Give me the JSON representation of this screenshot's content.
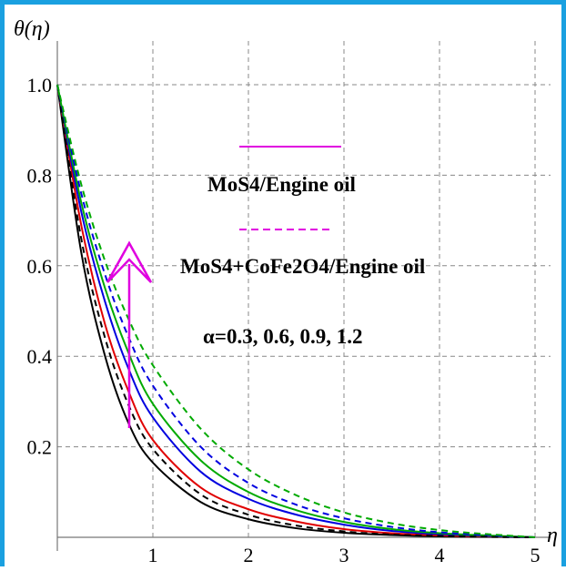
{
  "chart_data": {
    "type": "line",
    "ylabel": "θ(η)",
    "xlabel": "η",
    "xlim": [
      0,
      5
    ],
    "ylim": [
      0,
      1.0
    ],
    "x_ticks": [
      "1",
      "2",
      "3",
      "4",
      "5"
    ],
    "y_ticks": [
      "0.2",
      "0.4",
      "0.6",
      "0.8",
      "1.0"
    ],
    "grid": true,
    "legend": {
      "solid_label": "MoS4/Engine oil",
      "dashed_label": "MoS4+CoFe2O4/Engine oil",
      "param_text": "α=0.3, 0.6, 0.9, 1.2",
      "arrow_color": "#e000e0"
    },
    "colors": [
      "#000000",
      "#e00000",
      "#0000e0",
      "#00aa00"
    ],
    "series": [
      {
        "style": "solid",
        "color": "#000000",
        "x": [
          0,
          0.25,
          0.5,
          0.75,
          1,
          1.5,
          2,
          2.5,
          3,
          3.5,
          4,
          4.5,
          5
        ],
        "y": [
          1,
          0.63,
          0.4,
          0.25,
          0.165,
          0.078,
          0.04,
          0.02,
          0.01,
          0.005,
          0.002,
          0.001,
          0
        ]
      },
      {
        "style": "solid",
        "color": "#e00000",
        "x": [
          0,
          0.25,
          0.5,
          0.75,
          1,
          1.5,
          2,
          2.5,
          3,
          3.5,
          4,
          4.5,
          5
        ],
        "y": [
          1,
          0.69,
          0.47,
          0.32,
          0.215,
          0.11,
          0.062,
          0.035,
          0.018,
          0.009,
          0.004,
          0.002,
          0
        ]
      },
      {
        "style": "solid",
        "color": "#0000e0",
        "x": [
          0,
          0.25,
          0.5,
          0.75,
          1,
          1.5,
          2,
          2.5,
          3,
          3.5,
          4,
          4.5,
          5
        ],
        "y": [
          1,
          0.72,
          0.52,
          0.37,
          0.265,
          0.145,
          0.085,
          0.05,
          0.028,
          0.014,
          0.007,
          0.003,
          0
        ]
      },
      {
        "style": "solid",
        "color": "#00aa00",
        "x": [
          0,
          0.25,
          0.5,
          0.75,
          1,
          1.5,
          2,
          2.5,
          3,
          3.5,
          4,
          4.5,
          5
        ],
        "y": [
          1,
          0.74,
          0.55,
          0.405,
          0.295,
          0.17,
          0.1,
          0.06,
          0.034,
          0.018,
          0.009,
          0.004,
          0
        ]
      },
      {
        "style": "dashed",
        "color": "#000000",
        "x": [
          0,
          0.25,
          0.5,
          0.75,
          1,
          1.5,
          2,
          2.5,
          3,
          3.5,
          4,
          4.5,
          5
        ],
        "y": [
          1,
          0.66,
          0.44,
          0.29,
          0.195,
          0.095,
          0.05,
          0.026,
          0.013,
          0.006,
          0.003,
          0.001,
          0
        ]
      },
      {
        "style": "dashed",
        "color": "#0000e0",
        "x": [
          0,
          0.25,
          0.5,
          0.75,
          1,
          1.5,
          2,
          2.5,
          3,
          3.5,
          4,
          4.5,
          5
        ],
        "y": [
          1,
          0.76,
          0.58,
          0.44,
          0.335,
          0.2,
          0.12,
          0.072,
          0.042,
          0.023,
          0.011,
          0.005,
          0
        ]
      },
      {
        "style": "dashed",
        "color": "#00aa00",
        "x": [
          0,
          0.25,
          0.5,
          0.75,
          1,
          1.5,
          2,
          2.5,
          3,
          3.5,
          4,
          4.5,
          5
        ],
        "y": [
          1,
          0.78,
          0.61,
          0.48,
          0.38,
          0.24,
          0.15,
          0.093,
          0.055,
          0.031,
          0.016,
          0.007,
          0
        ]
      }
    ]
  }
}
